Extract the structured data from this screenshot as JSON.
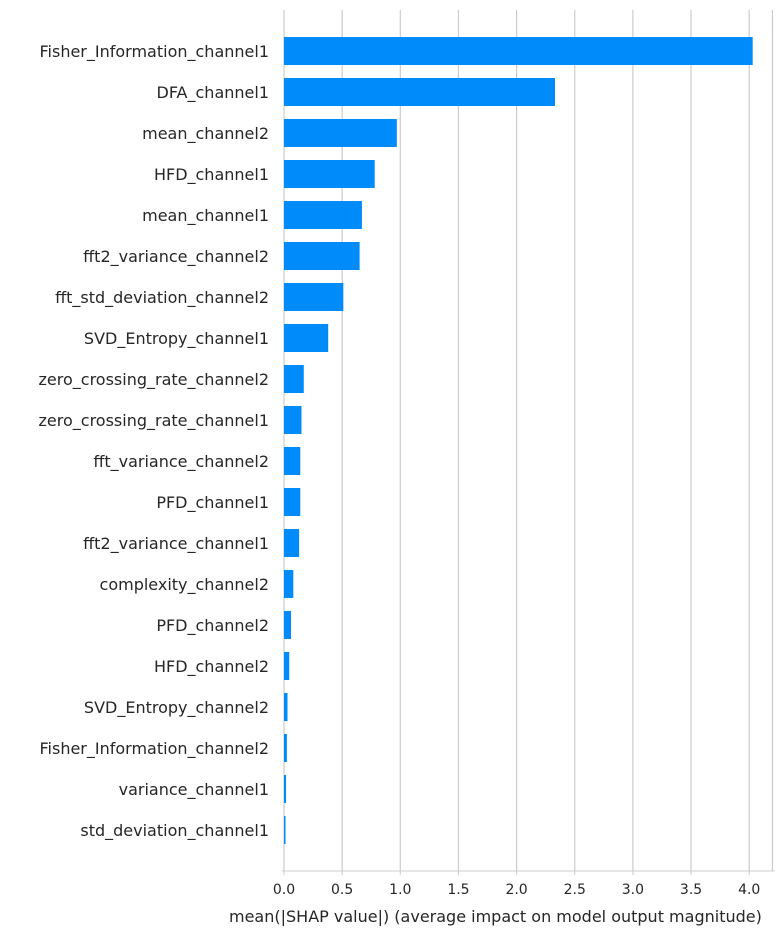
{
  "chart_data": {
    "type": "bar",
    "orientation": "horizontal",
    "title": "",
    "xlabel": "mean(|SHAP value|) (average impact on model output magnitude)",
    "ylabel": "",
    "xlim": [
      0,
      4.2
    ],
    "xticks": [
      "0.0",
      "0.5",
      "1.0",
      "1.5",
      "2.0",
      "2.5",
      "3.0",
      "3.5",
      "4.0"
    ],
    "grid": "x",
    "bar_color": "#008bfb",
    "categories": [
      "Fisher_Information_channel1",
      "DFA_channel1",
      "mean_channel2",
      "HFD_channel1",
      "mean_channel1",
      "fft2_variance_channel2",
      "fft_std_deviation_channel2",
      "SVD_Entropy_channel1",
      "zero_crossing_rate_channel2",
      "zero_crossing_rate_channel1",
      "fft_variance_channel2",
      "PFD_channel1",
      "fft2_variance_channel1",
      "complexity_channel2",
      "PFD_channel2",
      "HFD_channel2",
      "SVD_Entropy_channel2",
      "Fisher_Information_channel2",
      "variance_channel1",
      "std_deviation_channel1"
    ],
    "values": [
      4.03,
      2.33,
      0.97,
      0.78,
      0.67,
      0.65,
      0.51,
      0.38,
      0.17,
      0.15,
      0.14,
      0.14,
      0.13,
      0.08,
      0.06,
      0.045,
      0.03,
      0.025,
      0.018,
      0.012
    ]
  }
}
